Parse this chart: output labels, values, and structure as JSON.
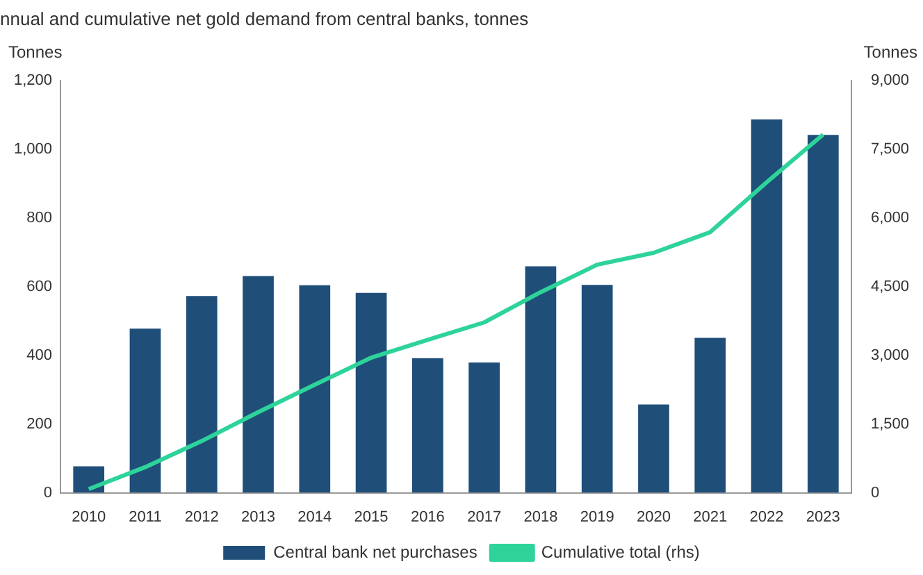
{
  "chart_data": {
    "type": "bar",
    "title": "nnual and cumulative net gold demand from central banks, tonnes",
    "ylabel": "Tonnes",
    "y2label": "Tonnes",
    "categories": [
      "2010",
      "2011",
      "2012",
      "2013",
      "2014",
      "2015",
      "2016",
      "2017",
      "2018",
      "2019",
      "2020",
      "2021",
      "2022",
      "2023"
    ],
    "series": [
      {
        "name": "Central bank net purchases",
        "color": "#1f4e79",
        "values": [
          77,
          478,
          573,
          631,
          604,
          582,
          392,
          379,
          659,
          605,
          257,
          451,
          1087,
          1042
        ]
      },
      {
        "name": "Cumulative total (rhs)",
        "type": "line",
        "axis": "y2",
        "color": "#2ed39a",
        "values": [
          80,
          560,
          1130,
          1760,
          2360,
          2950,
          3340,
          3720,
          4380,
          4980,
          5240,
          5690,
          6780,
          7820
        ]
      }
    ],
    "ylim": [
      0,
      1200
    ],
    "yticks": [
      0,
      {
        "value": 200,
        "label": "200"
      },
      {
        "value": 400,
        "label": "400"
      },
      {
        "value": 600,
        "label": "600"
      },
      {
        "value": 800,
        "label": "800"
      },
      {
        "value": 1000,
        "label": "1,000"
      },
      {
        "value": 1200,
        "label": "1,200"
      }
    ],
    "y2lim": [
      0,
      9000
    ],
    "y2ticks": [
      0,
      {
        "value": 1500,
        "label": "1,500"
      },
      {
        "value": 3000,
        "label": "3,000"
      },
      {
        "value": 4500,
        "label": "4,500"
      },
      {
        "value": 6000,
        "label": "6,000"
      },
      {
        "value": 7500,
        "label": "7,500"
      },
      {
        "value": 9000,
        "label": "9,000"
      }
    ],
    "grid": false,
    "legend": "bottom",
    "marker": "none",
    "line_style": "solid"
  }
}
